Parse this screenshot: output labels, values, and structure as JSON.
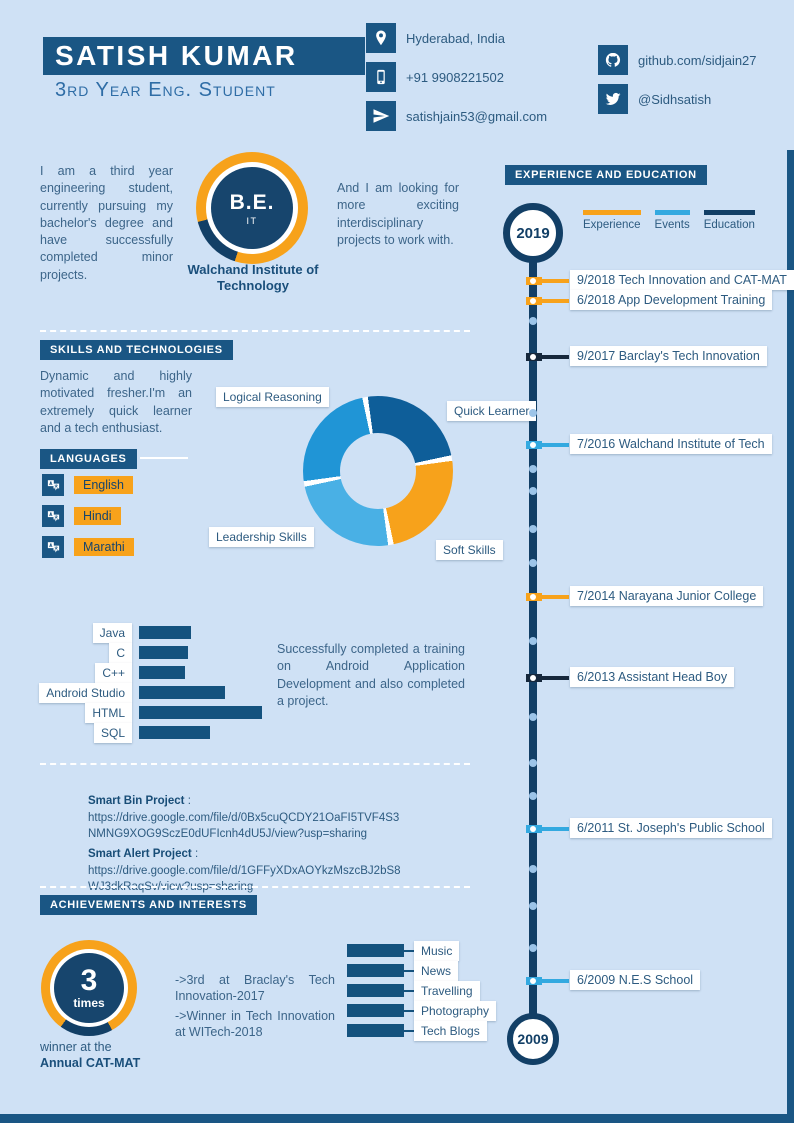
{
  "colors": {
    "background": "#cfe1f5",
    "band_navy": "#1a5684",
    "deep_navy": "#123f66",
    "orange": "#f7a21b",
    "light_blue": "#33a9e0",
    "dark_tick": "#16283c",
    "body_text": "#3c6589"
  },
  "header": {
    "name": "SATISH KUMAR",
    "subtitle": "3rd Year Eng. Student",
    "contacts": [
      {
        "icon": "location-icon",
        "text": "Hyderabad, India"
      },
      {
        "icon": "phone-icon",
        "text": "+91 9908221502"
      },
      {
        "icon": "email-icon",
        "text": "satishjain53@gmail.com"
      }
    ],
    "social": [
      {
        "icon": "github-icon",
        "text": "github.com/sidjain27"
      },
      {
        "icon": "twitter-icon",
        "text": "@Sidhsatish"
      }
    ]
  },
  "profile": {
    "intro": "I am a third year engineering student, currently pursuing my bachelor's degree and have successfully completed minor projects.",
    "degree": "B.E.",
    "degree_field": "IT",
    "institute": "Walchand Institute of Technology",
    "looking": "And I am looking for more exciting interdisciplinary projects to work with."
  },
  "sections": {
    "skills_title": "SKILLS AND TECHNOLOGIES",
    "languages_title": "LANGUAGES",
    "achievements_title": "ACHIEVEMENTS AND INTERESTS",
    "timeline_title": "EXPERIENCE AND EDUCATION"
  },
  "skills": {
    "description": "Dynamic and highly motivated fresher.I'm an extremely quick learner and a tech enthusiast."
  },
  "languages": [
    "English",
    "Hindi",
    "Marathi"
  ],
  "training_note": "Successfully completed a training on Android Application Development and also completed a project.",
  "projects": [
    {
      "label": "Smart Bin Project",
      "url": "https://drive.google.com/file/d/0Bx5cuQCDY21OaFI5TVF4S3NMNG9XOG9SczE0dUFIcnh4dU5J/view?usp=sharing"
    },
    {
      "label": "Smart Alert Project",
      "url": "https://drive.google.com/file/d/1GFFyXDxAOYkzMszcBJ2bS8WJ3dkRaqSv/view?usp=sharing"
    }
  ],
  "achievements": {
    "badge_number": "3",
    "badge_unit": "times",
    "caption_line1": "winner at the",
    "caption_line2": "Annual CAT-MAT",
    "notes": [
      "->3rd at Braclay's Tech Innovation-2017",
      "->Winner in Tech Innovation at WITech-2018"
    ],
    "interests": [
      "Music",
      "News",
      "Travelling",
      "Photography",
      "Tech Blogs"
    ]
  },
  "timeline": {
    "start_year": "2019",
    "end_year": "2009",
    "legend": [
      {
        "label": "Experience",
        "color": "#f7a21b"
      },
      {
        "label": "Events",
        "color": "#33a9e0"
      },
      {
        "label": "Education",
        "color": "#123f66"
      }
    ],
    "entries": [
      {
        "date": "9/2018",
        "title": "Tech Innovation and CAT-MAT",
        "category": "Experience",
        "color": "#f7a21b",
        "y": 281
      },
      {
        "date": "6/2018",
        "title": "App Development Training",
        "category": "Experience",
        "color": "#f7a21b",
        "y": 301
      },
      {
        "date": "9/2017",
        "title": "Barclay's Tech Innovation",
        "category": "Education",
        "color": "#16283c",
        "y": 357
      },
      {
        "date": "7/2016",
        "title": "Walchand Institute of Tech",
        "category": "Events",
        "color": "#33a9e0",
        "y": 445
      },
      {
        "date": "7/2014",
        "title": "Narayana Junior College",
        "category": "Experience",
        "color": "#f7a21b",
        "y": 597
      },
      {
        "date": "6/2013",
        "title": "Assistant Head Boy",
        "category": "Education",
        "color": "#16283c",
        "y": 678
      },
      {
        "date": "6/2011",
        "title": "St. Joseph's Public School",
        "category": "Events",
        "color": "#33a9e0",
        "y": 829
      },
      {
        "date": "6/2009",
        "title": "N.E.S School",
        "category": "Events",
        "color": "#33a9e0",
        "y": 981
      }
    ]
  },
  "chart_data": [
    {
      "type": "pie",
      "title": "Soft skills donut",
      "labels": [
        "Quick Learner",
        "Soft Skills",
        "Leadership Skills",
        "Logical Reasoning"
      ],
      "values": [
        25,
        25,
        25,
        25
      ],
      "colors": [
        "#0e5e99",
        "#f7a21b",
        "#49b0e5",
        "#2095d6"
      ],
      "legend_position": "around"
    },
    {
      "type": "bar",
      "title": "Technologies",
      "categories": [
        "Java",
        "C",
        "C++",
        "Android Studio",
        "HTML",
        "SQL"
      ],
      "values": [
        42,
        40,
        37,
        70,
        100,
        58
      ],
      "xlim": [
        0,
        100
      ],
      "orientation": "horizontal"
    }
  ]
}
